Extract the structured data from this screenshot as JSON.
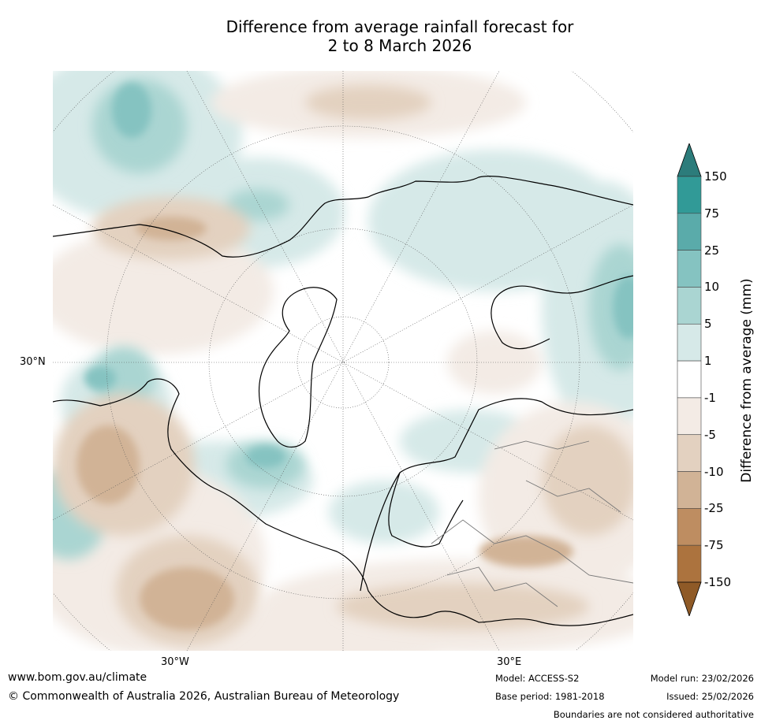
{
  "title_line1": "Difference from average rainfall forecast for",
  "title_line2": "2 to 8 March 2026",
  "map": {
    "projection": "north-polar-stereographic",
    "lat_labels": [
      "30°N"
    ],
    "lon_labels": [
      "30°W",
      "30°E"
    ],
    "colors": {
      "dry_light": "#f3ebe5",
      "dry_mid": "#e3d1c0",
      "dry_strong": "#d1b396",
      "wet_light": "#d6e9e8",
      "wet_mid": "#aad5d2",
      "wet_strong": "#85c3c1",
      "wet_extreme": "#63aaa8"
    }
  },
  "colorbar": {
    "title": "Difference from average (mm)",
    "ticks": [
      "150",
      "75",
      "25",
      "10",
      "5",
      "1",
      "-1",
      "-5",
      "-10",
      "-25",
      "-75",
      "-150"
    ],
    "bands": [
      "#2c7c7b",
      "#319a97",
      "#5aabaa",
      "#85c3c1",
      "#aad5d2",
      "#d6e9e8",
      "#ffffff",
      "#f3ebe5",
      "#e3d1c0",
      "#d1b396",
      "#be8d61",
      "#ac733e",
      "#8f5a27"
    ]
  },
  "footer": {
    "url": "www.bom.gov.au/climate",
    "copyright": "© Commonwealth of Australia 2026, Australian Bureau of Meteorology",
    "model": "Model: ACCESS-S2",
    "base_period": "Base period: 1981-2018",
    "model_run": "Model run: 23/02/2026",
    "issued": "Issued: 25/02/2026",
    "disclaimer": "Boundaries are not considered authoritative"
  }
}
